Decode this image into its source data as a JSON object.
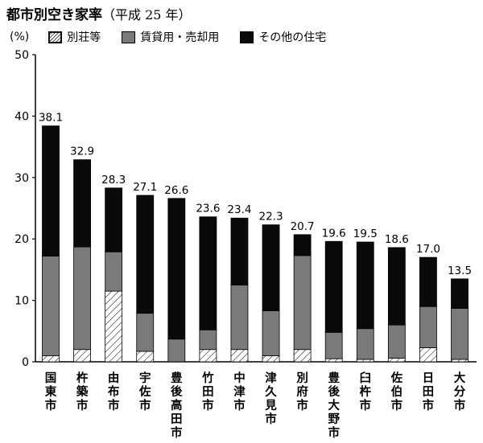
{
  "title": {
    "main": "都市別空き家率",
    "sub": "（平成 25 年）"
  },
  "legend": {
    "unit": "(%)",
    "items": [
      {
        "label": "別荘等",
        "pattern": "hatch"
      },
      {
        "label": "賃貸用・売却用",
        "color": "#7a7a7a"
      },
      {
        "label": "その他の住宅",
        "color": "#0a0a0a"
      }
    ]
  },
  "chart_data": {
    "type": "bar",
    "stacked": true,
    "ylim": [
      0,
      50
    ],
    "yticks": [
      0,
      10,
      20,
      30,
      40,
      50
    ],
    "grid": false,
    "categories": [
      "国東市",
      "杵築市",
      "由布市",
      "宇佐市",
      "豊後高田市",
      "竹田市",
      "中津市",
      "津久見市",
      "別府市",
      "豊後大野市",
      "臼杵市",
      "佐伯市",
      "日田市",
      "大分市"
    ],
    "totals": [
      38.1,
      32.9,
      28.3,
      27.1,
      26.6,
      23.6,
      23.4,
      22.3,
      20.7,
      19.6,
      19.5,
      18.6,
      17.0,
      13.5
    ],
    "series": [
      {
        "name": "別荘等",
        "pattern": "hatch",
        "values": [
          1.0,
          2.0,
          11.5,
          1.7,
          0.0,
          2.0,
          2.0,
          1.0,
          2.0,
          0.5,
          0.4,
          0.6,
          2.3,
          0.4
        ]
      },
      {
        "name": "賃貸用・売却用",
        "color": "#7a7a7a",
        "values": [
          16.2,
          16.7,
          6.4,
          6.2,
          3.7,
          3.2,
          10.5,
          7.3,
          15.3,
          4.3,
          5.0,
          5.4,
          6.7,
          8.3
        ]
      },
      {
        "name": "その他の住宅",
        "color": "#0a0a0a",
        "values": [
          21.2,
          14.2,
          10.4,
          19.2,
          22.9,
          18.4,
          10.9,
          14.0,
          3.4,
          14.8,
          14.1,
          12.6,
          8.0,
          4.8
        ]
      }
    ]
  }
}
